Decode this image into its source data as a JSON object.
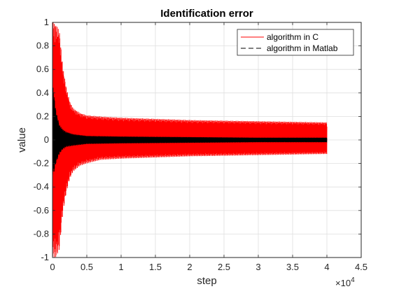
{
  "chart_data": {
    "type": "line",
    "title": "Identification error",
    "xlabel": "step",
    "ylabel": "value",
    "x_exponent_label": "×10",
    "x_exponent_power": "4",
    "xlim": [
      0,
      45000
    ],
    "ylim": [
      -1,
      1
    ],
    "x_ticks": [
      0,
      5000,
      10000,
      15000,
      20000,
      25000,
      30000,
      35000,
      40000,
      45000
    ],
    "x_tick_labels": [
      "0",
      "0.5",
      "1",
      "1.5",
      "2",
      "2.5",
      "3",
      "3.5",
      "4",
      "4.5"
    ],
    "y_ticks": [
      -1,
      -0.8,
      -0.6,
      -0.4,
      -0.2,
      0,
      0.2,
      0.4,
      0.6,
      0.8,
      1
    ],
    "y_tick_labels": [
      "-1",
      "-0.8",
      "-0.6",
      "-0.4",
      "-0.2",
      "0",
      "0.2",
      "0.4",
      "0.6",
      "0.8",
      "1"
    ],
    "grid": true,
    "legend_position": "top-right",
    "series": [
      {
        "name": "algorithm in C",
        "color": "#ff0000",
        "style": "solid",
        "envelope": {
          "x": [
            0,
            200,
            500,
            1000,
            1500,
            2000,
            2500,
            3000,
            4000,
            5000,
            7000,
            10000,
            15000,
            20000,
            30000,
            40000
          ],
          "upper": [
            1.0,
            1.0,
            0.98,
            0.93,
            0.62,
            0.45,
            0.33,
            0.27,
            0.23,
            0.21,
            0.2,
            0.19,
            0.18,
            0.17,
            0.16,
            0.15
          ],
          "lower": [
            -1.0,
            -1.0,
            -1.0,
            -0.93,
            -0.62,
            -0.45,
            -0.33,
            -0.27,
            -0.22,
            -0.2,
            -0.17,
            -0.16,
            -0.15,
            -0.14,
            -0.13,
            -0.12
          ]
        }
      },
      {
        "name": "algorithm in Matlab",
        "color": "#000000",
        "style": "dashed",
        "envelope": {
          "x": [
            0,
            200,
            500,
            1000,
            1500,
            2000,
            3000,
            5000,
            10000,
            20000,
            30000,
            40000
          ],
          "upper": [
            0.48,
            0.4,
            0.25,
            0.13,
            0.09,
            0.07,
            0.05,
            0.035,
            0.03,
            0.025,
            0.02,
            0.02
          ],
          "lower": [
            -0.3,
            -0.28,
            -0.2,
            -0.12,
            -0.08,
            -0.06,
            -0.05,
            -0.035,
            -0.03,
            -0.025,
            -0.02,
            -0.02
          ]
        }
      }
    ]
  }
}
